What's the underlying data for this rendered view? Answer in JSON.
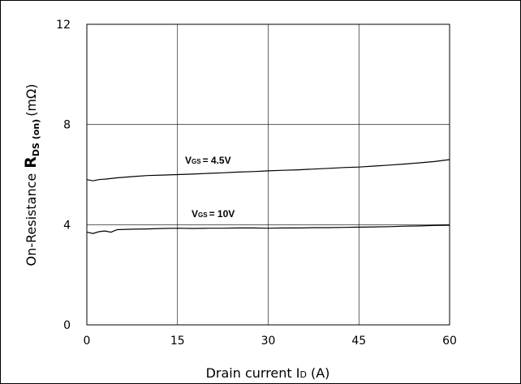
{
  "chart_data": {
    "type": "line",
    "xlim": [
      0,
      60
    ],
    "ylim": [
      0,
      12
    ],
    "x_ticks": [
      "0",
      "15",
      "30",
      "45",
      "60"
    ],
    "y_ticks": [
      "0",
      "4",
      "8",
      "12"
    ],
    "grid": true,
    "xlabel": {
      "main": "Drain current I",
      "sub": "D",
      "unit": "(A)"
    },
    "ylabel": {
      "prefix": "On-Resistance",
      "symbol": "R",
      "sub": "DS (on)",
      "unit": "(mΩ)"
    },
    "series": [
      {
        "label": {
          "symbol": "V",
          "sub": "GS",
          "value": "= 4.5V"
        },
        "x": [
          0,
          1,
          2,
          3,
          5,
          7.5,
          10,
          12.5,
          15,
          17.5,
          20,
          22.5,
          25,
          27.5,
          30,
          32.5,
          35,
          37.5,
          40,
          42.5,
          45,
          47.5,
          50,
          52.5,
          55,
          57.5,
          60
        ],
        "y": [
          5.8,
          5.75,
          5.8,
          5.82,
          5.87,
          5.92,
          5.96,
          5.98,
          6.0,
          6.02,
          6.05,
          6.07,
          6.1,
          6.12,
          6.15,
          6.17,
          6.19,
          6.22,
          6.25,
          6.28,
          6.3,
          6.34,
          6.38,
          6.42,
          6.47,
          6.52,
          6.6
        ]
      },
      {
        "label": {
          "symbol": "V",
          "sub": "GS",
          "value": "= 10V"
        },
        "x": [
          0,
          1,
          2,
          3,
          4,
          5,
          7.5,
          10,
          12.5,
          15,
          17.5,
          20,
          22.5,
          25,
          27.5,
          30,
          32.5,
          35,
          37.5,
          40,
          42.5,
          45,
          47.5,
          50,
          52.5,
          55,
          57.5,
          60
        ],
        "y": [
          3.7,
          3.65,
          3.72,
          3.75,
          3.7,
          3.8,
          3.82,
          3.83,
          3.85,
          3.86,
          3.85,
          3.86,
          3.86,
          3.87,
          3.87,
          3.86,
          3.87,
          3.87,
          3.88,
          3.88,
          3.89,
          3.9,
          3.91,
          3.92,
          3.94,
          3.95,
          3.97,
          3.98
        ]
      }
    ]
  }
}
